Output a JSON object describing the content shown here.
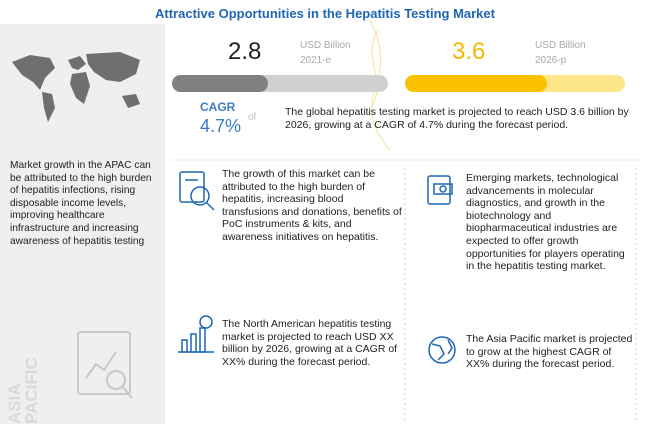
{
  "title": "Attractive Opportunities in the Hepatitis Testing Market",
  "market": {
    "start": {
      "value": "2.8",
      "unit": "USD Billion",
      "year": "2021-e"
    },
    "end": {
      "value": "3.6",
      "unit": "USD Billion",
      "year": "2026-p"
    },
    "cagr": {
      "label": "CAGR",
      "value": "4.7%",
      "of": "of"
    },
    "summary": "The global hepatitis testing market is projected to reach USD 3.6 billion by 2026, growing at a CAGR of 4.7% during the forecast period."
  },
  "left_panel": {
    "text": "Market growth in the APAC can be attributed to the high burden of hepatitis infections, rising disposable income levels, improving healthcare infrastructure and increasing awareness of hepatitis testing",
    "region": [
      "ASIA",
      "PACIFIC"
    ]
  },
  "boxes": [
    {
      "text": "The growth of this market can be attributed to the high burden of hepatitis, increasing blood transfusions and donations, benefits of PoC instruments & kits, and awareness initiatives on hepatitis."
    },
    {
      "text": "Emerging markets, technological advancements in molecular diagnostics, and growth in the biotechnology and biopharmaceutical industries are expected to offer growth opportunities for players operating in the hepatitis testing market."
    },
    {
      "text": "The North American hepatitis testing market is projected to reach USD XX billion by 2026, growing at a CAGR of XX% during the forecast period."
    },
    {
      "text": "The Asia Pacific market is projected to grow at the highest CAGR of XX% during the forecast period."
    }
  ]
}
